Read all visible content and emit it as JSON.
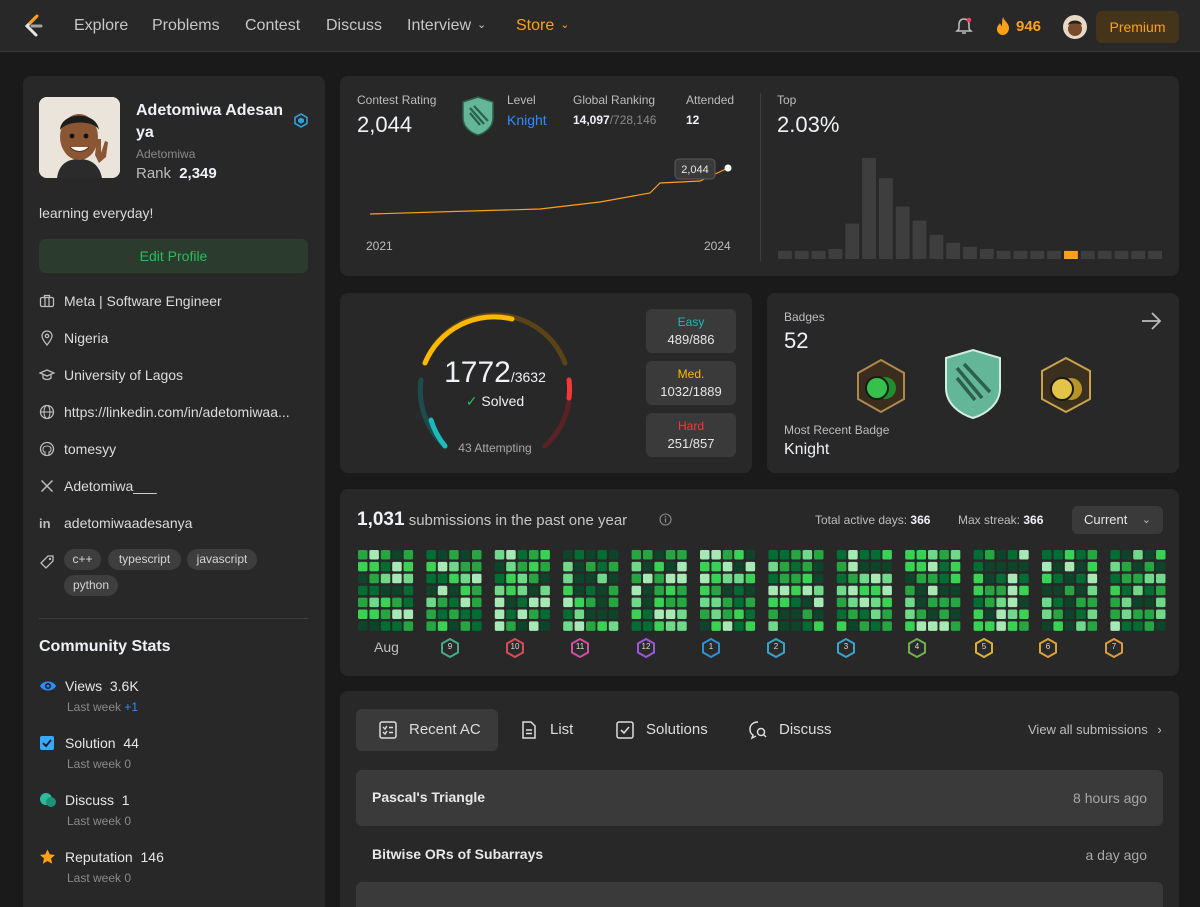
{
  "nav": {
    "links": [
      "Explore",
      "Problems",
      "Contest",
      "Discuss",
      "Interview",
      "Store"
    ],
    "streak": "946",
    "premium": "Premium"
  },
  "profile": {
    "name": "Adetomiwa Adesanya",
    "name_line1": "Adetomiwa Adesan",
    "name_line2": "ya",
    "username": "Adetomiwa",
    "rank_label": "Rank",
    "rank": "2,349",
    "bio": "learning everyday!",
    "edit": "Edit Profile",
    "company": "Meta | Software Engineer",
    "location": "Nigeria",
    "school": "University of Lagos",
    "website": "https://linkedin.com/in/adetomiwaa...",
    "github": "tomesyy",
    "twitter": "Adetomiwa___",
    "linkedin": "adetomiwaadesanya",
    "skills": [
      "c++",
      "typescript",
      "javascript",
      "python"
    ]
  },
  "community": {
    "title": "Community Stats",
    "views": {
      "label": "Views",
      "value": "3.6K",
      "last": "Last week",
      "delta": "+1"
    },
    "solution": {
      "label": "Solution",
      "value": "44",
      "last": "Last week",
      "delta": "0"
    },
    "discuss": {
      "label": "Discuss",
      "value": "1",
      "last": "Last week",
      "delta": "0"
    },
    "reputation": {
      "label": "Reputation",
      "value": "146",
      "last": "Last week",
      "delta": "0"
    }
  },
  "contest": {
    "rating_label": "Contest Rating",
    "rating": "2,044",
    "level_label": "Level",
    "level": "Knight",
    "global_label": "Global Ranking",
    "global": "14,097",
    "global_total": "/728,146",
    "attended_label": "Attended",
    "attended": "12",
    "tooltip": "2,044",
    "start_year": "2021",
    "end_year": "2024",
    "top_label": "Top",
    "top": "2.03%",
    "colors": {
      "line": "#ffa116",
      "bar": "#3e3e3e",
      "highlight": "#ffa116"
    }
  },
  "chart_data": {
    "type": "bar",
    "title": "Top",
    "values": [
      8,
      8,
      8,
      10,
      35,
      100,
      80,
      52,
      38,
      24,
      16,
      12,
      10,
      8,
      8,
      8,
      8,
      8,
      8,
      8,
      8,
      8,
      8
    ],
    "highlight_index": 17,
    "ylim": [
      0,
      100
    ]
  },
  "solved": {
    "count": "1772",
    "total": "/3632",
    "solved_label": "Solved",
    "attempting": "43 Attempting",
    "easy_label": "Easy",
    "easy": "489/886",
    "med_label": "Med.",
    "med": "1032/1889",
    "hard_label": "Hard",
    "hard": "251/857",
    "colors": {
      "easy": "#1cbaba",
      "med": "#ffb800",
      "hard": "#f63737"
    }
  },
  "badges": {
    "label": "Badges",
    "count": "52",
    "recent_label": "Most Recent Badge",
    "recent": "Knight"
  },
  "submissions": {
    "count": "1,031",
    "text": "submissions in the past one year",
    "active_label": "Total active days:",
    "active": "366",
    "streak_label": "Max streak:",
    "streak": "366",
    "select": "Current",
    "month": "Aug",
    "month_badges": [
      "9",
      "10",
      "11",
      "12",
      "1",
      "2",
      "3",
      "4",
      "5",
      "6",
      "7"
    ]
  },
  "recent": {
    "tabs": [
      "Recent AC",
      "List",
      "Solutions",
      "Discuss"
    ],
    "view_all": "View all submissions",
    "items": [
      {
        "title": "Pascal's Triangle",
        "time": "8 hours ago"
      },
      {
        "title": "Bitwise ORs of Subarrays",
        "time": "a day ago"
      }
    ]
  }
}
